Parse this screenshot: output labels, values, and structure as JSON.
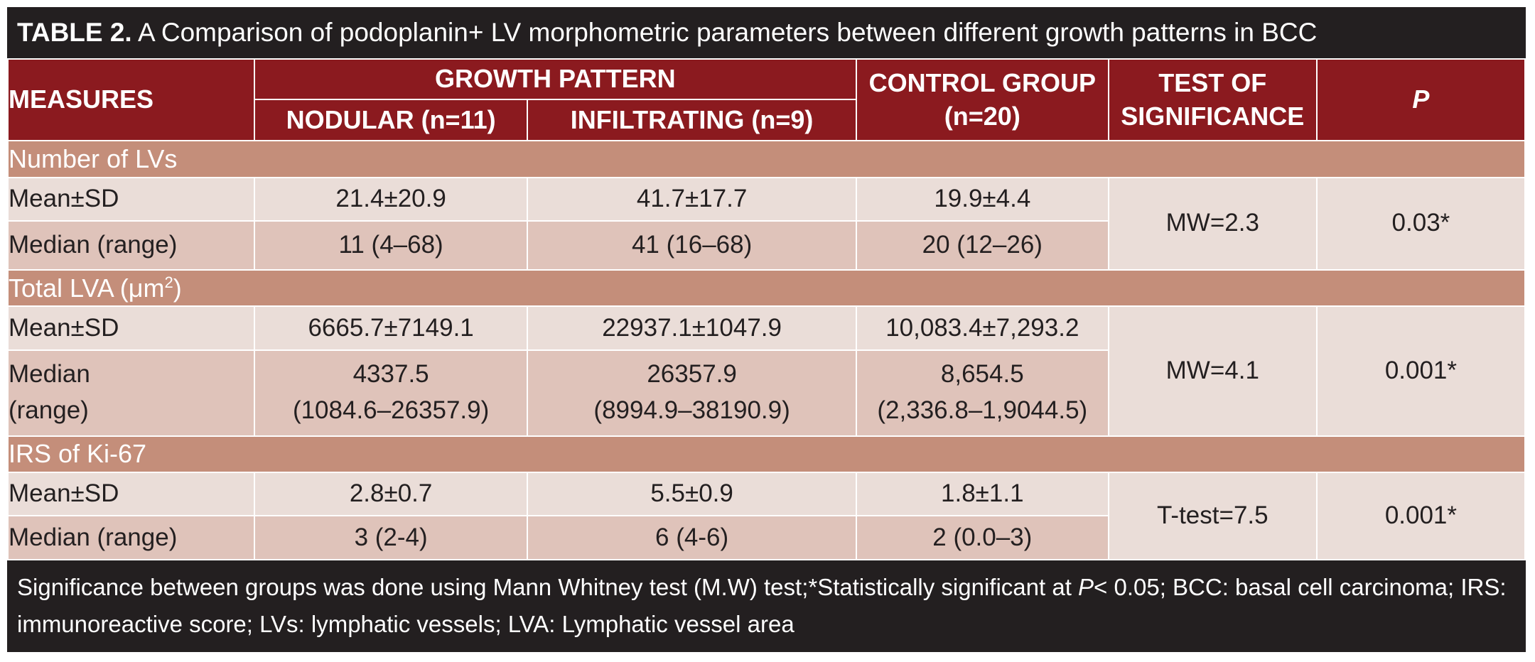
{
  "title": {
    "label": "TABLE 2.",
    "text": "A Comparison of podoplanin+ LV morphometric parameters between different growth patterns in BCC"
  },
  "header": {
    "measures": "MEASURES",
    "growth_pattern": "GROWTH PATTERN",
    "nodular": "NODULAR (n=11)",
    "infiltrating": "INFILTRATING  (n=9)",
    "control_line1": "CONTROL GROUP",
    "control_line2": "(n=20)",
    "test_line1": "TEST OF",
    "test_line2": "SIGNIFICANCE",
    "p": "P"
  },
  "sections": [
    {
      "name": "Number of LVs",
      "rows": [
        {
          "label": "Mean±SD",
          "nodular": "21.4±20.9",
          "infiltrating": "41.7±17.7",
          "control": "19.9±4.4"
        },
        {
          "label": "Median (range)",
          "nodular": "11  (4–68)",
          "infiltrating": "41 (16–68)",
          "control": "20 (12–26)"
        }
      ],
      "test": "MW=2.3",
      "p": "0.03*"
    },
    {
      "name": "Total LVA (μm",
      "name_sup": "2",
      "name_end": ")",
      "rows": [
        {
          "label": "Mean±SD",
          "nodular": "6665.7±7149.1",
          "infiltrating": "22937.1±1047.9",
          "control": "10,083.4±7,293.2"
        },
        {
          "label_line1": "Median",
          "label_line2": "(range)",
          "nodular_line1": "4337.5",
          "nodular_line2": "(1084.6–26357.9)",
          "infiltrating_line1": "26357.9",
          "infiltrating_line2": "(8994.9–38190.9)",
          "control_line1": "8,654.5",
          "control_line2": "(2,336.8–1,9044.5)"
        }
      ],
      "test": "MW=4.1",
      "p": "0.001*"
    },
    {
      "name": "IRS of Ki-67",
      "rows": [
        {
          "label": "Mean±SD",
          "nodular": "2.8±0.7",
          "infiltrating": "5.5±0.9",
          "control": "1.8±1.1"
        },
        {
          "label": "Median (range)",
          "nodular": "3 (2-4)",
          "infiltrating": "6 (4-6)",
          "control": "2 (0.0–3)"
        }
      ],
      "test": "T-test=7.5",
      "p": "0.001*"
    }
  ],
  "footnote": {
    "part1": "Significance between groups was done using Mann Whitney test (M.W) test;*Statistically significant at ",
    "p_italic": "P",
    "part2": "< 0.05; BCC: basal cell carcinoma; IRS: immunoreactive score; LVs: lymphatic vessels; LVA: Lymphatic vessel area"
  },
  "colors": {
    "header_bg": "#8b1a1f",
    "section_bg": "#c48e7a",
    "light_row": "#eaddd8",
    "dark_row": "#dfc3ba",
    "frame": "#231f20"
  }
}
